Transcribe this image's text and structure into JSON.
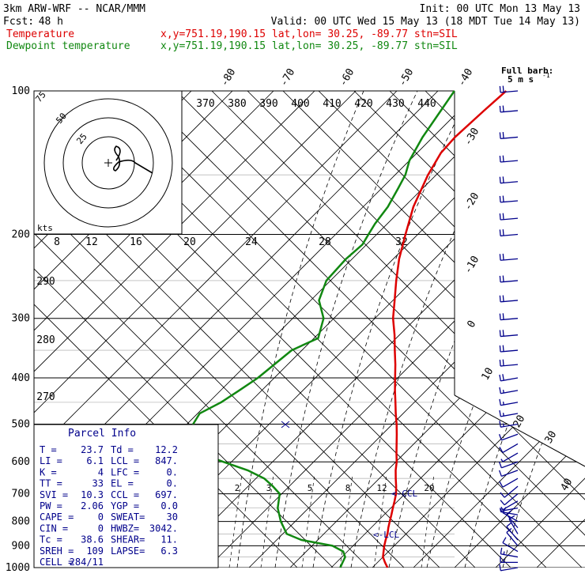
{
  "header": {
    "model": "3km ARW-WRF -- NCAR/MMM",
    "init": "Init: 00 UTC Mon 13 May 13",
    "fcst_label": "Fcst:",
    "fcst_value": "48 h",
    "valid": "Valid: 00 UTC Wed 15 May 13 (18 MDT Tue 14 May 13)"
  },
  "legend": [
    {
      "name": "Temperature",
      "color": "#dd0000",
      "info": "x,y=751.19,190.15   lat,lon= 30.25, -89.77   stn=SIL"
    },
    {
      "name": "Dewpoint temperature",
      "color": "#118811",
      "info": "x,y=751.19,190.15   lat,lon= 30.25, -89.77   stn=SIL"
    }
  ],
  "wind_label": {
    "line1": "Full barb:",
    "line2": "5 m s"
  },
  "hodograph": {
    "ring_labels": [
      "75",
      "50",
      "25"
    ],
    "speed_labels": [
      "8",
      "12",
      "16",
      "20",
      "24",
      "28",
      "32"
    ],
    "units": "kts"
  },
  "theta_labels": [
    "370",
    "380",
    "390",
    "400",
    "410",
    "420",
    "430",
    "440"
  ],
  "theta_lower_labels": [
    "290",
    "280",
    "270"
  ],
  "mixing_ratio_labels": [
    "2",
    "3",
    "5",
    "8",
    "12",
    "20"
  ],
  "lcl_labels": {
    "ccl": "<-CCL",
    "lcl": "<-LCL"
  },
  "parcel_info": {
    "title": "Parcel Info",
    "rows": [
      [
        "T  =",
        "23.7",
        "Td =",
        "12.2"
      ],
      [
        "LI =",
        "6.1",
        "LCL =",
        "847."
      ],
      [
        "K  =",
        "4",
        "LFC =",
        "0."
      ],
      [
        "TT =",
        "33",
        "EL  =",
        "0."
      ],
      [
        "SVI =",
        "10.3",
        "CCL =",
        "697."
      ],
      [
        "PW =",
        "2.06",
        "YGP =",
        "0.0"
      ],
      [
        "CAPE =",
        "0",
        "SWEAT=",
        "30"
      ],
      [
        "CIN =",
        "0",
        "HWBZ=",
        "3042."
      ],
      [
        "Tc =",
        "38.6",
        "SHEAR=",
        "11."
      ],
      [
        "SREH =",
        "109",
        "LAPSE=",
        "6.3"
      ],
      [
        "CELL =",
        "284/11",
        "",
        ""
      ]
    ]
  },
  "chart_data": {
    "type": "line",
    "ylabel": "",
    "xlabel": "",
    "y_scale": "log",
    "y_ticks": [
      100,
      200,
      300,
      400,
      500,
      600,
      700,
      800,
      900,
      1000
    ],
    "ylim": [
      1000,
      100
    ],
    "x_ticks": [
      -80,
      -70,
      -60,
      -50,
      -40,
      -30,
      -20,
      -10,
      0,
      10,
      20,
      30,
      40
    ],
    "grid": true,
    "series": [
      {
        "name": "Temperature",
        "color": "#dd0000",
        "points": [
          [
            1000,
            23.7
          ],
          [
            975,
            21.8
          ],
          [
            950,
            20.0
          ],
          [
            925,
            18.8
          ],
          [
            900,
            17.6
          ],
          [
            875,
            16.5
          ],
          [
            850,
            15.5
          ],
          [
            825,
            14.2
          ],
          [
            800,
            13.0
          ],
          [
            775,
            11.8
          ],
          [
            750,
            10.5
          ],
          [
            725,
            9.2
          ],
          [
            700,
            7.8
          ],
          [
            675,
            6.0
          ],
          [
            650,
            4.0
          ],
          [
            625,
            2.0
          ],
          [
            600,
            0.2
          ],
          [
            575,
            -2.0
          ],
          [
            550,
            -4.2
          ],
          [
            525,
            -6.5
          ],
          [
            500,
            -9.0
          ],
          [
            475,
            -11.8
          ],
          [
            450,
            -14.6
          ],
          [
            425,
            -17.6
          ],
          [
            400,
            -20.6
          ],
          [
            375,
            -23.8
          ],
          [
            350,
            -27.4
          ],
          [
            325,
            -31.2
          ],
          [
            300,
            -35.6
          ],
          [
            275,
            -39.6
          ],
          [
            250,
            -44.0
          ],
          [
            225,
            -48.6
          ],
          [
            200,
            -53.0
          ],
          [
            175,
            -57.8
          ],
          [
            150,
            -62.0
          ],
          [
            135,
            -64.2
          ],
          [
            125,
            -64.6
          ],
          [
            110,
            -64.0
          ],
          [
            100,
            -63.4
          ]
        ]
      },
      {
        "name": "Dewpoint temperature",
        "color": "#118811",
        "points": [
          [
            1000,
            12.2
          ],
          [
            975,
            11.5
          ],
          [
            950,
            10.8
          ],
          [
            925,
            9.0
          ],
          [
            900,
            5.0
          ],
          [
            875,
            -4.0
          ],
          [
            850,
            -9.0
          ],
          [
            800,
            -13.5
          ],
          [
            750,
            -17.5
          ],
          [
            700,
            -20.5
          ],
          [
            675,
            -24.0
          ],
          [
            650,
            -28.0
          ],
          [
            625,
            -34.0
          ],
          [
            600,
            -42.0
          ],
          [
            575,
            -50.0
          ],
          [
            550,
            -55.0
          ],
          [
            500,
            -58.5
          ],
          [
            475,
            -59.5
          ],
          [
            450,
            -57.0
          ],
          [
            425,
            -55.5
          ],
          [
            400,
            -54.0
          ],
          [
            350,
            -52.5
          ],
          [
            330,
            -49.0
          ],
          [
            300,
            -52.5
          ],
          [
            275,
            -58.0
          ],
          [
            250,
            -61.0
          ],
          [
            225,
            -61.5
          ],
          [
            210,
            -61.0
          ],
          [
            200,
            -62.0
          ],
          [
            190,
            -63.0
          ],
          [
            175,
            -64.0
          ],
          [
            160,
            -66.0
          ],
          [
            150,
            -67.5
          ],
          [
            140,
            -70.0
          ],
          [
            125,
            -72.5
          ],
          [
            110,
            -74.5
          ],
          [
            100,
            -76.0
          ]
        ]
      }
    ],
    "wind_barbs": [
      {
        "p": 1000,
        "spd": 6,
        "dir": 260
      },
      {
        "p": 975,
        "spd": 8,
        "dir": 270
      },
      {
        "p": 950,
        "spd": 8,
        "dir": 280
      },
      {
        "p": 925,
        "spd": 6,
        "dir": 300
      },
      {
        "p": 900,
        "spd": 6,
        "dir": 320
      },
      {
        "p": 875,
        "spd": 5,
        "dir": 320
      },
      {
        "p": 850,
        "spd": 5,
        "dir": 330
      },
      {
        "p": 825,
        "spd": 5,
        "dir": 320
      },
      {
        "p": 800,
        "spd": 5,
        "dir": 300
      },
      {
        "p": 775,
        "spd": 4,
        "dir": 280
      },
      {
        "p": 750,
        "spd": 4,
        "dir": 260
      },
      {
        "p": 725,
        "spd": 4,
        "dir": 240
      },
      {
        "p": 700,
        "spd": 5,
        "dir": 230
      },
      {
        "p": 675,
        "spd": 5,
        "dir": 230
      },
      {
        "p": 650,
        "spd": 5,
        "dir": 240
      },
      {
        "p": 625,
        "spd": 6,
        "dir": 250
      },
      {
        "p": 600,
        "spd": 5,
        "dir": 250
      },
      {
        "p": 575,
        "spd": 4,
        "dir": 240
      },
      {
        "p": 550,
        "spd": 5,
        "dir": 240
      },
      {
        "p": 525,
        "spd": 6,
        "dir": 250
      },
      {
        "p": 500,
        "spd": 8,
        "dir": 260
      },
      {
        "p": 475,
        "spd": 8,
        "dir": 260
      },
      {
        "p": 450,
        "spd": 9,
        "dir": 260
      },
      {
        "p": 425,
        "spd": 9,
        "dir": 260
      },
      {
        "p": 400,
        "spd": 10,
        "dir": 260
      },
      {
        "p": 375,
        "spd": 10,
        "dir": 265
      },
      {
        "p": 350,
        "spd": 10,
        "dir": 265
      },
      {
        "p": 325,
        "spd": 10,
        "dir": 265
      },
      {
        "p": 300,
        "spd": 10,
        "dir": 265
      },
      {
        "p": 275,
        "spd": 10,
        "dir": 265
      },
      {
        "p": 250,
        "spd": 10,
        "dir": 265
      },
      {
        "p": 225,
        "spd": 10,
        "dir": 265
      },
      {
        "p": 200,
        "spd": 10,
        "dir": 265
      },
      {
        "p": 185,
        "spd": 10,
        "dir": 265
      },
      {
        "p": 170,
        "spd": 10,
        "dir": 265
      },
      {
        "p": 155,
        "spd": 10,
        "dir": 265
      },
      {
        "p": 140,
        "spd": 10,
        "dir": 265
      },
      {
        "p": 125,
        "spd": 10,
        "dir": 265
      },
      {
        "p": 110,
        "spd": 10,
        "dir": 265
      },
      {
        "p": 100,
        "spd": 10,
        "dir": 265
      }
    ]
  }
}
